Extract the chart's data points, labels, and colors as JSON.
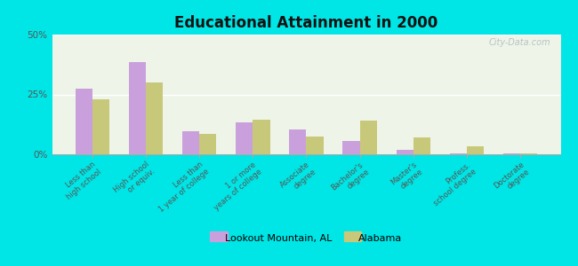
{
  "title": "Educational Attainment in 2000",
  "categories": [
    "Less than\nhigh school",
    "High school\nor equiv.",
    "Less than\n1 year of college",
    "1 or more\nyears of college",
    "Associate\ndegree",
    "Bachelor's\ndegree",
    "Master's\ndegree",
    "Profess.\nschool degree",
    "Doctorate\ndegree"
  ],
  "lookout_values": [
    27.5,
    38.5,
    9.5,
    13.5,
    10.5,
    5.5,
    2.0,
    0.5,
    0.2
  ],
  "alabama_values": [
    23.0,
    30.0,
    8.5,
    14.5,
    7.5,
    14.0,
    7.0,
    3.5,
    0.5
  ],
  "lookout_color": "#c9a0dc",
  "alabama_color": "#c8c87a",
  "background_outer": "#00e5e5",
  "background_inner": "#eef5e8",
  "ylim": [
    0,
    50
  ],
  "yticks": [
    0,
    25,
    50
  ],
  "ytick_labels": [
    "0%",
    "25%",
    "50%"
  ],
  "watermark": "City-Data.com",
  "legend_lookout": "Lookout Mountain, AL",
  "legend_alabama": "Alabama"
}
